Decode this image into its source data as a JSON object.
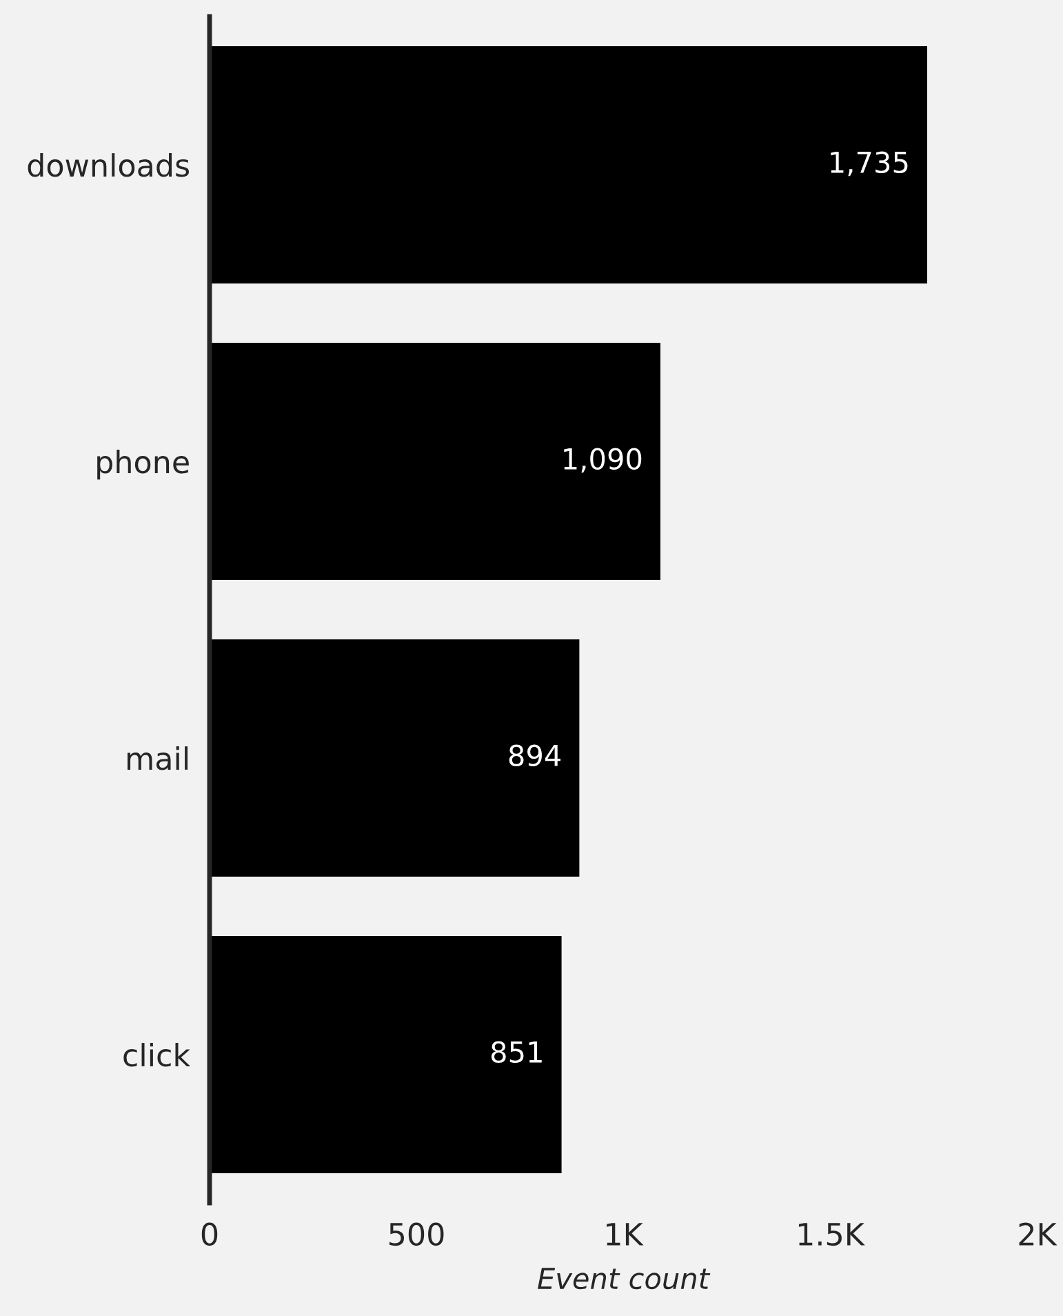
{
  "chart_data": {
    "type": "bar",
    "orientation": "horizontal",
    "xlabel": "Event count",
    "categories": [
      "downloads",
      "phone",
      "mail",
      "click"
    ],
    "values": [
      1735,
      1090,
      894,
      851
    ],
    "value_labels": [
      "1,735",
      "1,090",
      "894",
      "851"
    ],
    "color": "#000000",
    "xlim": [
      0,
      2000
    ],
    "xticks": [
      0,
      500,
      {
        "value": 1000,
        "label": "1K"
      },
      {
        "value": 1500,
        "label": "1.5K"
      },
      {
        "value": 2000,
        "label": "2K"
      }
    ],
    "grid": false,
    "legend": false
  }
}
